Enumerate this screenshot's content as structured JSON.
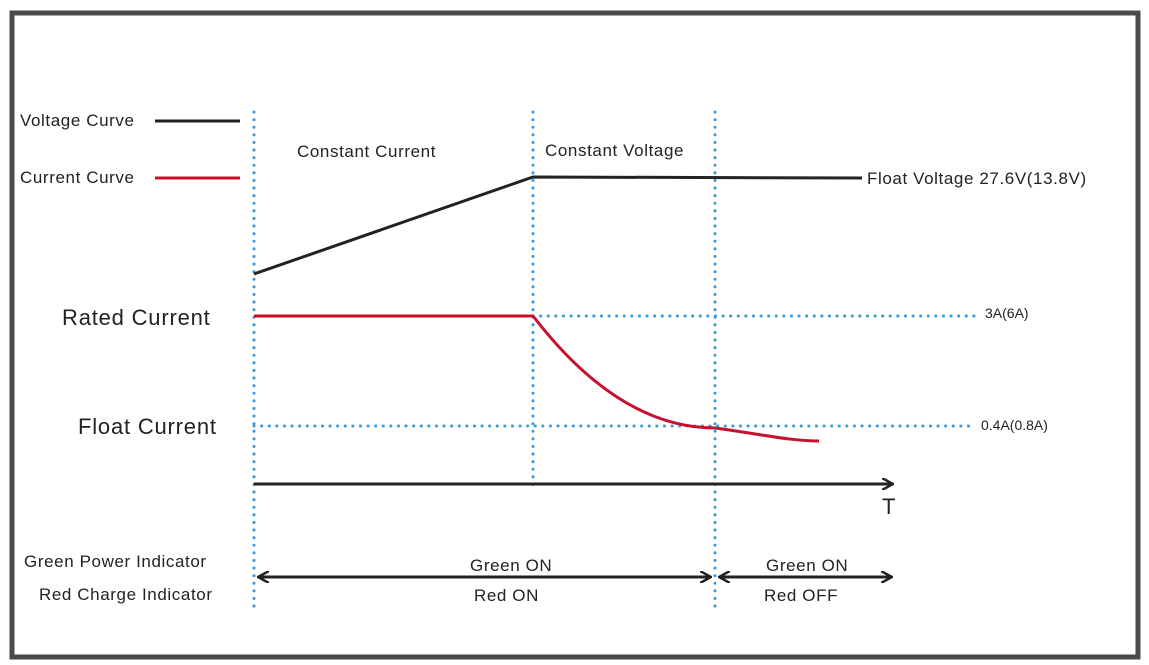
{
  "legend": {
    "voltage_label": "Voltage Curve",
    "current_label": "Current Curve"
  },
  "phases": {
    "constant_current": "Constant Current",
    "constant_voltage": "Constant Voltage"
  },
  "levels": {
    "rated_current": "Rated Current",
    "float_current": "Float Current",
    "rated_value": "3A(6A)",
    "float_value": "0.4A(0.8A)"
  },
  "float_voltage_label": "Float Voltage 27.6V(13.8V)",
  "time_axis_label": "T",
  "indicators": {
    "green_label": "Green Power Indicator",
    "red_label": "Red Charge Indicator",
    "phase1_green": "Green ON",
    "phase1_red": "Red ON",
    "phase2_green": "Green ON",
    "phase2_red": "Red OFF"
  },
  "colors": {
    "voltage": "#222222",
    "current": "#c8102e",
    "guide": "#3a9ad9",
    "frame": "#4a4a4a"
  }
}
